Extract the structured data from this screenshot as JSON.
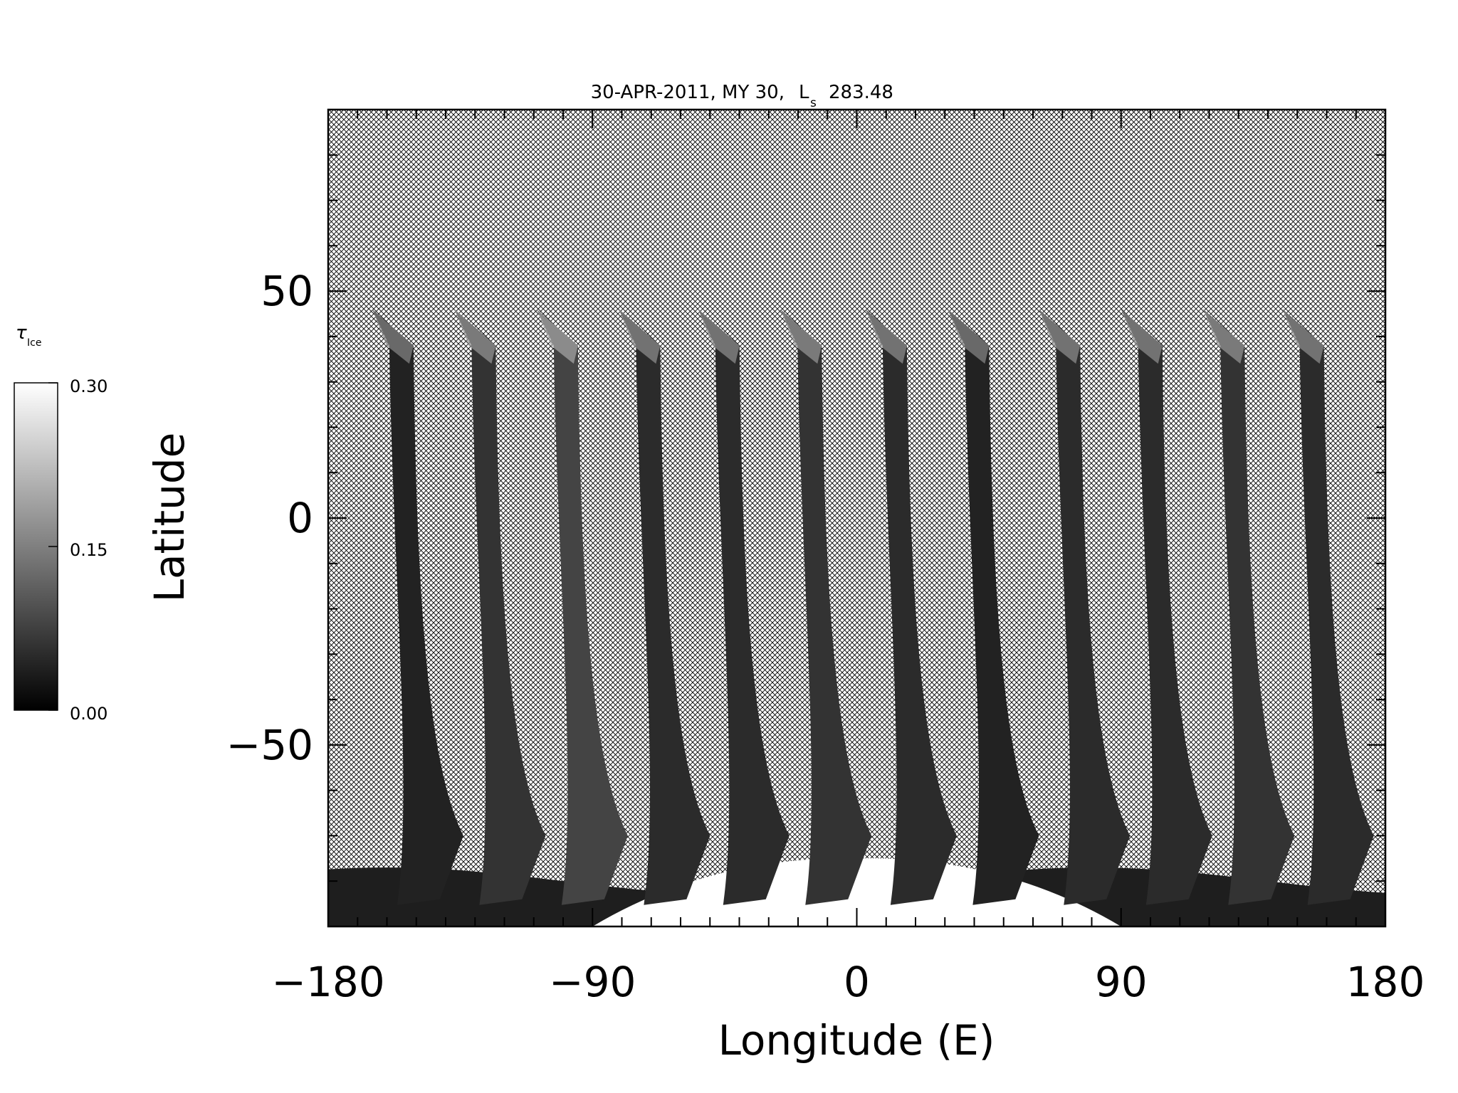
{
  "chart_data": {
    "type": "heatmap",
    "title": "30-APR-2011, MY 30,",
    "title_ls_symbol": "L",
    "title_ls_subscript": "s",
    "title_ls_value": "283.48",
    "xlabel": "Longitude (E)",
    "ylabel": "Latitude",
    "xlim": [
      -180,
      180
    ],
    "ylim": [
      -90,
      90
    ],
    "xticks": [
      -180,
      -90,
      0,
      90,
      180
    ],
    "yticks": [
      -50,
      0,
      50
    ],
    "x_minor_step": 10,
    "y_minor_step": 10,
    "grid": false,
    "no_data_pattern": "crosshatch",
    "colorbar": {
      "label": "τ",
      "label_subscript": "Ice",
      "min": 0.0,
      "max": 0.3,
      "ticks": [
        "0.30",
        "0.15",
        "0.00"
      ],
      "colormap": "grayscale",
      "position": "left"
    },
    "swaths": [
      {
        "top_lon": -165,
        "top_lat": 46,
        "value": 0.04
      },
      {
        "top_lon": -137,
        "top_lat": 46,
        "value": 0.06
      },
      {
        "top_lon": -109,
        "top_lat": 46,
        "value": 0.08
      },
      {
        "top_lon": -81,
        "top_lat": 46,
        "value": 0.05
      },
      {
        "top_lon": -54,
        "top_lat": 46,
        "value": 0.05
      },
      {
        "top_lon": -26,
        "top_lat": 46,
        "value": 0.06
      },
      {
        "top_lon": 3,
        "top_lat": 46,
        "value": 0.05
      },
      {
        "top_lon": 31,
        "top_lat": 46,
        "value": 0.04
      },
      {
        "top_lon": 62,
        "top_lat": 46,
        "value": 0.05
      },
      {
        "top_lon": 90,
        "top_lat": 46,
        "value": 0.05
      },
      {
        "top_lon": 118,
        "top_lat": 46,
        "value": 0.06
      },
      {
        "top_lon": 145,
        "top_lat": 46,
        "value": 0.05
      }
    ],
    "polar_cap": {
      "lat_edge": -75,
      "lon_range": [
        -90,
        90
      ],
      "value": 0.3
    }
  }
}
